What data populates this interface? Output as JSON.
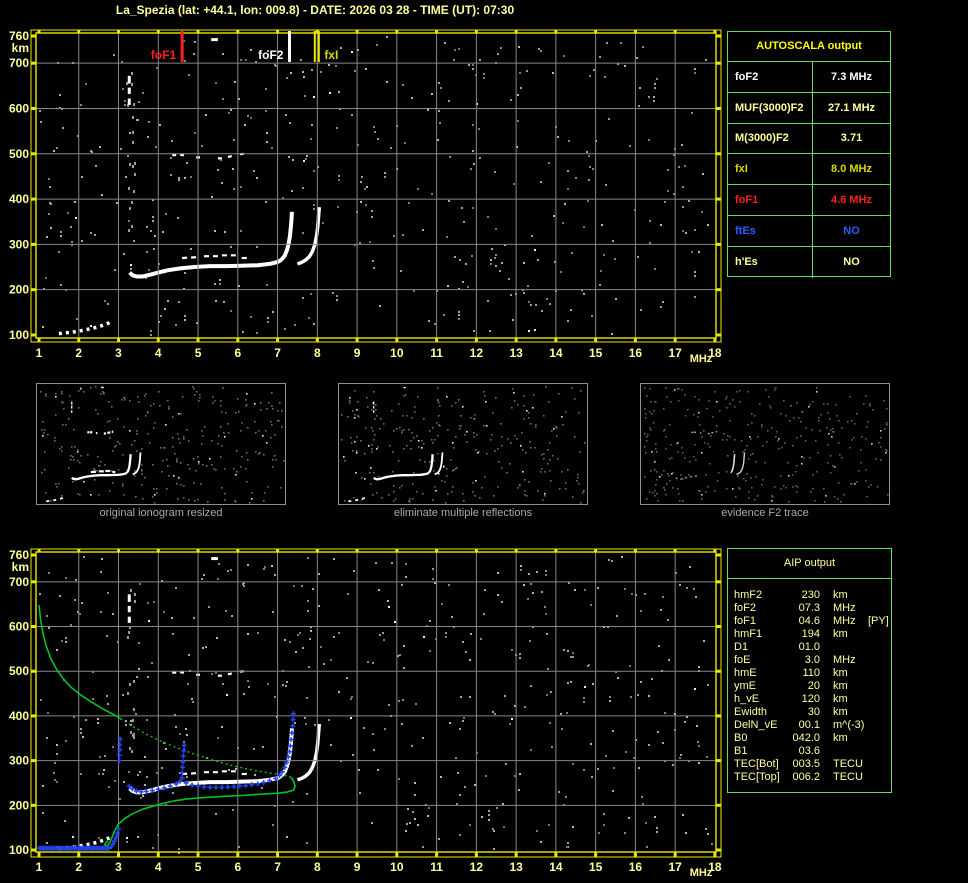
{
  "title": "La_Spezia (lat: +44.1, lon: 009.8) - DATE: 2026 03 28 - TIME (UT): 07:30",
  "colors": {
    "pale_yellow": "#ffff9c",
    "bright_yellow": "#ffff00",
    "frame_yellow": "#e8e800",
    "marker_yellow": "#d9d900",
    "red": "#ff1f1f",
    "blue": "#2a5cff",
    "white": "#ffffff",
    "grid_gray": "#878787",
    "noise_gray": "#9c9c9c",
    "table_green": "#63dd63",
    "profile_green": "#00c322",
    "fitted_blue": "#2443ee",
    "caption_gray": "#ababab"
  },
  "axes": {
    "x_unit": "MHz",
    "y_unit": "km",
    "x_ticks": [
      1,
      2,
      3,
      4,
      5,
      6,
      7,
      8,
      9,
      10,
      11,
      12,
      13,
      14,
      15,
      16,
      17,
      18
    ],
    "y_ticks": [
      760,
      700,
      600,
      500,
      400,
      300,
      200,
      100
    ]
  },
  "autoscala": {
    "title": "AUTOSCALA output",
    "rows": [
      {
        "label": "foF2",
        "value": "7.3 MHz",
        "color": "white"
      },
      {
        "label": "MUF(3000)F2",
        "value": "27.1 MHz",
        "color": "pale"
      },
      {
        "label": "M(3000)F2",
        "value": "3.71",
        "color": "pale"
      },
      {
        "label": "fxI",
        "value": "8.0 MHz",
        "color": "yellow"
      },
      {
        "label": "foF1",
        "value": "4.6 MHz",
        "color": "red"
      },
      {
        "label": "ftEs",
        "value": "NO",
        "color": "blue"
      },
      {
        "label": "h'Es",
        "value": "NO",
        "color": "pale"
      }
    ]
  },
  "thumbnails": [
    {
      "caption": "original ionogram resized"
    },
    {
      "caption": "eliminate multiple reflections"
    },
    {
      "caption": "evidence F2 trace"
    }
  ],
  "aip": {
    "title": "AIP output",
    "rows": [
      {
        "name": "hmF2",
        "value": "230",
        "unit": "km",
        "extra": ""
      },
      {
        "name": "foF2",
        "value": "07.3",
        "unit": "MHz",
        "extra": ""
      },
      {
        "name": "foF1",
        "value": "04.6",
        "unit": "MHz",
        "extra": "[PY]"
      },
      {
        "name": "hmF1",
        "value": "194",
        "unit": "km",
        "extra": ""
      },
      {
        "name": "D1",
        "value": "01.0",
        "unit": "",
        "extra": ""
      },
      {
        "name": "foE",
        "value": "3.0",
        "unit": "MHz",
        "extra": ""
      },
      {
        "name": "hmE",
        "value": "110",
        "unit": "km",
        "extra": ""
      },
      {
        "name": "ymE",
        "value": "20",
        "unit": "km",
        "extra": ""
      },
      {
        "name": "h_vE",
        "value": "120",
        "unit": "km",
        "extra": ""
      },
      {
        "name": "Ewidth",
        "value": "30",
        "unit": "km",
        "extra": ""
      },
      {
        "name": "DelN_vE",
        "value": "00.1",
        "unit": "m^(-3)",
        "extra": ""
      },
      {
        "name": "B0",
        "value": "042.0",
        "unit": "km",
        "extra": ""
      },
      {
        "name": "B1",
        "value": "03.6",
        "unit": "",
        "extra": ""
      },
      {
        "name": "TEC[Bot]",
        "value": "003.5",
        "unit": "TECU",
        "extra": ""
      },
      {
        "name": "TEC[Top]",
        "value": "006.2",
        "unit": "TECU",
        "extra": ""
      }
    ]
  },
  "chart_data": {
    "type": "ionogram",
    "title": "La_Spezia ionogram 2026-03-28 07:30 UT",
    "xlabel": "MHz",
    "ylabel": "km",
    "x_range_mhz": [
      1,
      18
    ],
    "y_range_km": [
      100,
      760
    ],
    "markers": [
      {
        "label": "foF1",
        "mhz": 4.6,
        "color": "#ff1f1f",
        "side": "left"
      },
      {
        "label": "foF2",
        "mhz": 7.3,
        "color": "#ffffff",
        "side": "left"
      },
      {
        "label": "fxI",
        "mhz": 8.0,
        "color": "#d9d900",
        "side": "right"
      }
    ],
    "white_trace": {
      "e_region": [
        [
          1.5,
          103
        ],
        [
          1.7,
          105
        ],
        [
          1.9,
          107
        ],
        [
          2.1,
          110
        ],
        [
          2.3,
          114
        ],
        [
          2.5,
          118
        ],
        [
          2.65,
          123
        ],
        [
          2.8,
          128
        ]
      ],
      "f_band": [
        [
          3.28,
          238
        ],
        [
          3.35,
          232
        ],
        [
          3.45,
          229
        ],
        [
          3.6,
          229
        ],
        [
          3.8,
          233
        ],
        [
          4.0,
          238
        ],
        [
          4.25,
          243
        ],
        [
          4.55,
          247
        ],
        [
          4.9,
          250
        ],
        [
          5.3,
          252
        ],
        [
          5.7,
          252
        ],
        [
          6.1,
          253
        ],
        [
          6.5,
          254
        ],
        [
          6.8,
          257
        ],
        [
          7.0,
          261
        ],
        [
          7.1,
          266
        ]
      ],
      "o_cusp": [
        [
          7.1,
          266
        ],
        [
          7.18,
          275
        ],
        [
          7.24,
          288
        ],
        [
          7.28,
          302
        ],
        [
          7.31,
          318
        ],
        [
          7.33,
          335
        ],
        [
          7.35,
          355
        ],
        [
          7.36,
          372
        ]
      ],
      "x_cusp": [
        [
          7.5,
          257
        ],
        [
          7.6,
          260
        ],
        [
          7.7,
          265
        ],
        [
          7.8,
          273
        ],
        [
          7.88,
          285
        ],
        [
          7.94,
          300
        ],
        [
          7.98,
          318
        ],
        [
          8.01,
          338
        ],
        [
          8.03,
          360
        ],
        [
          8.05,
          382
        ]
      ],
      "echo_segments": [
        [
          [
            4.6,
            270
          ],
          [
            5.0,
            272
          ]
        ],
        [
          [
            5.15,
            274
          ],
          [
            5.5,
            274
          ]
        ],
        [
          [
            5.6,
            276
          ],
          [
            5.95,
            276
          ]
        ],
        [
          [
            6.1,
            270
          ],
          [
            6.3,
            270
          ]
        ]
      ],
      "high_echo": [
        [
          [
            4.35,
            497
          ],
          [
            4.5,
            497
          ]
        ],
        [
          [
            4.55,
            498
          ],
          [
            4.7,
            496
          ]
        ],
        [
          [
            4.95,
            492
          ],
          [
            5.05,
            492
          ]
        ],
        [
          [
            5.5,
            490
          ],
          [
            5.65,
            490
          ]
        ],
        [
          [
            5.75,
            493
          ],
          [
            5.95,
            497
          ]
        ],
        [
          [
            6.05,
            499
          ],
          [
            6.15,
            500
          ]
        ]
      ],
      "vertical_dashes": {
        "mhz": 3.27,
        "km_segments": [
          [
            608,
            622
          ],
          [
            632,
            646
          ],
          [
            655,
            672
          ]
        ]
      },
      "stray_dash": [
        [
          5.33,
          752
        ],
        [
          5.5,
          752
        ]
      ],
      "interference_column": {
        "mhz": 3.3,
        "km_range": [
          320,
          700
        ]
      }
    },
    "profile_green": {
      "topside_solid": [
        [
          1.0,
          648
        ],
        [
          1.04,
          615
        ],
        [
          1.1,
          585
        ],
        [
          1.18,
          556
        ],
        [
          1.3,
          528
        ],
        [
          1.45,
          503
        ],
        [
          1.62,
          482
        ],
        [
          1.82,
          463
        ],
        [
          2.05,
          447
        ],
        [
          2.3,
          432
        ],
        [
          2.6,
          416
        ],
        [
          2.9,
          402
        ],
        [
          3.05,
          394
        ]
      ],
      "topside_dotted": [
        [
          3.05,
          394
        ],
        [
          3.35,
          377
        ],
        [
          3.7,
          359
        ],
        [
          4.1,
          342
        ],
        [
          4.55,
          326
        ],
        [
          5.0,
          312
        ],
        [
          5.45,
          299
        ],
        [
          5.9,
          288
        ],
        [
          6.35,
          279
        ],
        [
          6.8,
          272
        ],
        [
          7.1,
          268
        ],
        [
          7.3,
          265
        ]
      ],
      "bottomside_solid": [
        [
          7.3,
          265
        ],
        [
          7.38,
          258
        ],
        [
          7.42,
          250
        ],
        [
          7.44,
          242
        ],
        [
          7.4,
          234
        ],
        [
          7.25,
          230
        ],
        [
          7.0,
          227
        ],
        [
          6.6,
          225
        ],
        [
          6.1,
          222
        ],
        [
          5.6,
          220
        ],
        [
          5.1,
          217
        ],
        [
          4.7,
          214
        ],
        [
          4.4,
          210
        ],
        [
          4.15,
          205
        ],
        [
          3.9,
          199
        ],
        [
          3.6,
          191
        ],
        [
          3.35,
          181
        ],
        [
          3.15,
          170
        ],
        [
          3.0,
          158
        ],
        [
          2.92,
          146
        ],
        [
          2.86,
          134
        ],
        [
          2.81,
          123
        ],
        [
          2.76,
          114
        ],
        [
          2.7,
          109
        ],
        [
          2.65,
          112
        ],
        [
          2.69,
          117
        ],
        [
          2.74,
          120
        ]
      ]
    },
    "fitted_blue": {
      "baseline": {
        "mhz_from": 1.0,
        "mhz_to": 2.78,
        "step": 0.045,
        "km": 104
      },
      "points": [
        [
          2.82,
          108
        ],
        [
          2.86,
          113
        ],
        [
          2.9,
          120
        ],
        [
          2.94,
          128
        ],
        [
          2.97,
          137
        ],
        [
          3.0,
          147
        ],
        [
          3.02,
          300
        ],
        [
          3.02,
          312
        ],
        [
          3.03,
          324
        ],
        [
          3.03,
          336
        ],
        [
          3.04,
          348
        ],
        [
          3.27,
          243
        ],
        [
          3.35,
          237
        ],
        [
          3.45,
          232
        ],
        [
          3.57,
          230
        ],
        [
          3.7,
          231
        ],
        [
          3.85,
          233
        ],
        [
          4.0,
          236
        ],
        [
          4.15,
          239
        ],
        [
          4.3,
          243
        ],
        [
          4.45,
          248
        ],
        [
          4.55,
          254
        ],
        [
          4.6,
          262
        ],
        [
          4.6,
          273
        ],
        [
          4.61,
          285
        ],
        [
          4.62,
          297
        ],
        [
          4.63,
          310
        ],
        [
          4.64,
          322
        ],
        [
          4.65,
          334
        ],
        [
          4.7,
          250
        ],
        [
          4.85,
          245
        ],
        [
          5.0,
          243
        ],
        [
          5.15,
          241
        ],
        [
          5.3,
          240
        ],
        [
          5.45,
          240
        ],
        [
          5.6,
          240
        ],
        [
          5.75,
          241
        ],
        [
          5.9,
          242
        ],
        [
          6.05,
          243
        ],
        [
          6.2,
          244
        ],
        [
          6.35,
          246
        ],
        [
          6.5,
          248
        ],
        [
          6.65,
          251
        ],
        [
          6.8,
          255
        ],
        [
          6.95,
          260
        ],
        [
          7.05,
          267
        ],
        [
          7.12,
          275
        ],
        [
          7.18,
          285
        ],
        [
          7.23,
          296
        ],
        [
          7.27,
          308
        ],
        [
          7.3,
          320
        ],
        [
          7.32,
          333
        ],
        [
          7.34,
          347
        ],
        [
          7.36,
          362
        ],
        [
          7.38,
          378
        ],
        [
          7.39,
          392
        ],
        [
          7.4,
          405
        ]
      ]
    }
  }
}
